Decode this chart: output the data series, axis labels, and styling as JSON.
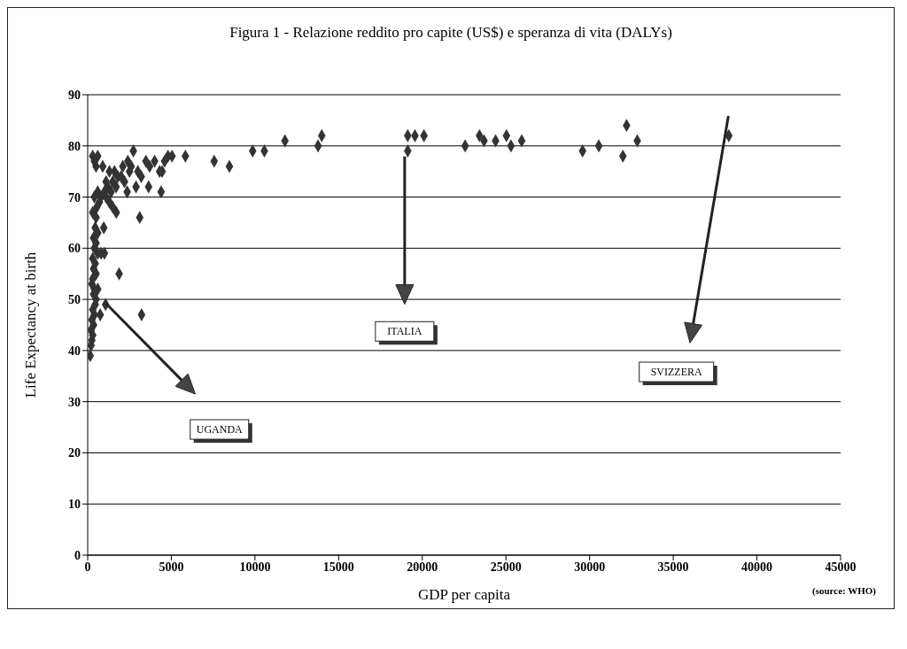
{
  "chart_data": {
    "type": "scatter",
    "title": "Figura 1 - Relazione reddito pro capite (US$) e speranza di vita (DALYs)",
    "xlabel": "GDP per capita",
    "ylabel": "Life Expectancy at birth",
    "xlim": [
      0,
      45000
    ],
    "xticks": [
      0,
      5000,
      10000,
      15000,
      20000,
      25000,
      30000,
      35000,
      40000,
      45000
    ],
    "ylim": [
      0,
      90
    ],
    "yticks": [
      0,
      10,
      20,
      30,
      40,
      50,
      60,
      70,
      80,
      90
    ],
    "grid": "y",
    "marker": "diamond",
    "annotations": [
      "UGANDA",
      "ITALIA",
      "SVIZZERA",
      "(source: WHO)"
    ],
    "series": [
      {
        "color": "#333333",
        "x": [
          150,
          200,
          250,
          300,
          200,
          350,
          250,
          400,
          300,
          450,
          500,
          350,
          600,
          400,
          250,
          300,
          500,
          350,
          450,
          300,
          600,
          800,
          400,
          500,
          350,
          600,
          960,
          450,
          500,
          300,
          540,
          1710,
          700,
          400,
          800,
          1000,
          600,
          1200,
          1500,
          1800,
          2000,
          1300,
          1600,
          900,
          400,
          300,
          600,
          500,
          1100,
          2200,
          2500,
          1400,
          1700,
          2100,
          750,
          1000,
          1100,
          1300,
          1500,
          1070,
          2400,
          2730,
          2600,
          3000,
          3200,
          3480,
          3700,
          4000,
          4300,
          4450,
          4600,
          4800,
          5040,
          2360,
          2890,
          3640,
          4390,
          3110,
          1880,
          3220,
          5840,
          7560,
          8470,
          9860,
          10560,
          11790,
          13770,
          13990,
          19130,
          19130,
          19560,
          20100,
          22560,
          23420,
          23690,
          24380,
          25030,
          25300,
          25940,
          29580,
          30550,
          31990,
          32210,
          32850,
          38320
        ],
        "values": [
          39,
          41,
          42,
          43,
          44,
          45,
          46,
          47,
          48,
          49,
          50,
          51,
          52,
          52,
          53,
          54,
          55,
          56,
          57,
          58,
          59,
          59,
          60,
          61,
          62,
          63,
          64,
          64,
          66,
          67,
          68,
          67,
          69,
          70,
          70,
          71,
          71,
          72,
          73,
          74,
          74,
          75,
          75,
          76,
          77,
          78,
          78,
          76,
          73,
          73,
          75,
          71,
          72,
          76,
          47,
          59,
          70,
          69,
          68,
          49,
          77,
          79,
          76,
          75,
          74,
          77,
          76,
          77,
          75,
          75,
          77,
          78,
          78,
          71,
          72,
          72,
          71,
          66,
          55,
          47,
          78,
          77,
          76,
          79,
          79,
          81,
          80,
          82,
          79,
          82,
          82,
          82,
          80,
          82,
          81,
          81,
          82,
          80,
          81,
          79,
          80,
          78,
          84,
          81,
          82
        ]
      }
    ]
  }
}
